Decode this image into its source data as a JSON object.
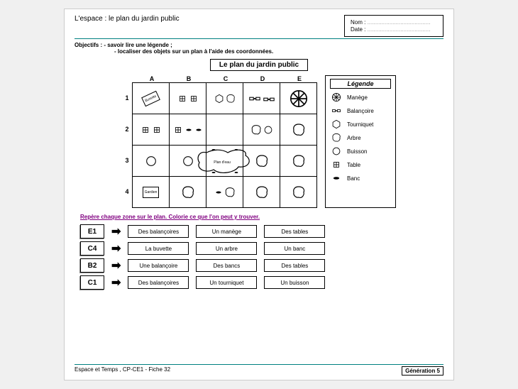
{
  "header": {
    "title": "L'espace : le plan du jardin public",
    "nom_label": "Nom :",
    "date_label": "Date :",
    "dots": "........................................"
  },
  "objectifs": {
    "line1": "Objectifs : - savoir lire une légende ;",
    "line2": "- localiser des objets sur un plan à l'aide des coordonnées."
  },
  "plan": {
    "title": "Le plan du jardin public",
    "cols": [
      "A",
      "B",
      "C",
      "D",
      "E"
    ],
    "rows": [
      "1",
      "2",
      "3",
      "4"
    ],
    "cells": {
      "A1": "buvette",
      "B1": "table2",
      "C1": "tourniquet-arbre",
      "D1": "balancoires",
      "E1": "manege",
      "A2": "table2",
      "B2": "table-banc",
      "C2": "",
      "D2": "arbre-buisson",
      "E2": "arbre",
      "A3": "buisson",
      "B3": "buisson",
      "C3": "plandeau",
      "D3": "arbre",
      "E3": "arbre",
      "A4": "gardien",
      "B4": "arbre",
      "C4": "banc-arbre",
      "D4": "arbre",
      "E4": "arbre"
    },
    "plandeau_label": "Plan d'eau",
    "buvette_label": "Buvette",
    "gardien_label": "Gardien"
  },
  "legend": {
    "title": "Légende",
    "items": [
      {
        "icon": "manege",
        "label": "Manège"
      },
      {
        "icon": "balancoire",
        "label": "Balançoire"
      },
      {
        "icon": "tourniquet",
        "label": "Tourniquet"
      },
      {
        "icon": "arbre",
        "label": "Arbre"
      },
      {
        "icon": "buisson",
        "label": "Buisson"
      },
      {
        "icon": "table",
        "label": "Table"
      },
      {
        "icon": "banc",
        "label": "Banc"
      }
    ]
  },
  "instruction": "Repère chaque zone sur le plan. Colorie ce que l'on peut y trouver.",
  "answers": [
    {
      "coord": "E1",
      "opts": [
        "Des balançoires",
        "Un manège",
        "Des tables"
      ]
    },
    {
      "coord": "C4",
      "opts": [
        "La buvette",
        "Un arbre",
        "Un banc"
      ]
    },
    {
      "coord": "B2",
      "opts": [
        "Une balançoire",
        "Des bancs",
        "Des tables"
      ]
    },
    {
      "coord": "C1",
      "opts": [
        "Des balançoires",
        "Un tourniquet",
        "Un buisson"
      ]
    }
  ],
  "footer": {
    "left": "Espace et Temps , CP-CE1 - Fiche 32",
    "right": "Génération 5"
  },
  "colors": {
    "teal": "#008080",
    "purple": "#800080",
    "black": "#000000",
    "bg": "#ffffff"
  }
}
